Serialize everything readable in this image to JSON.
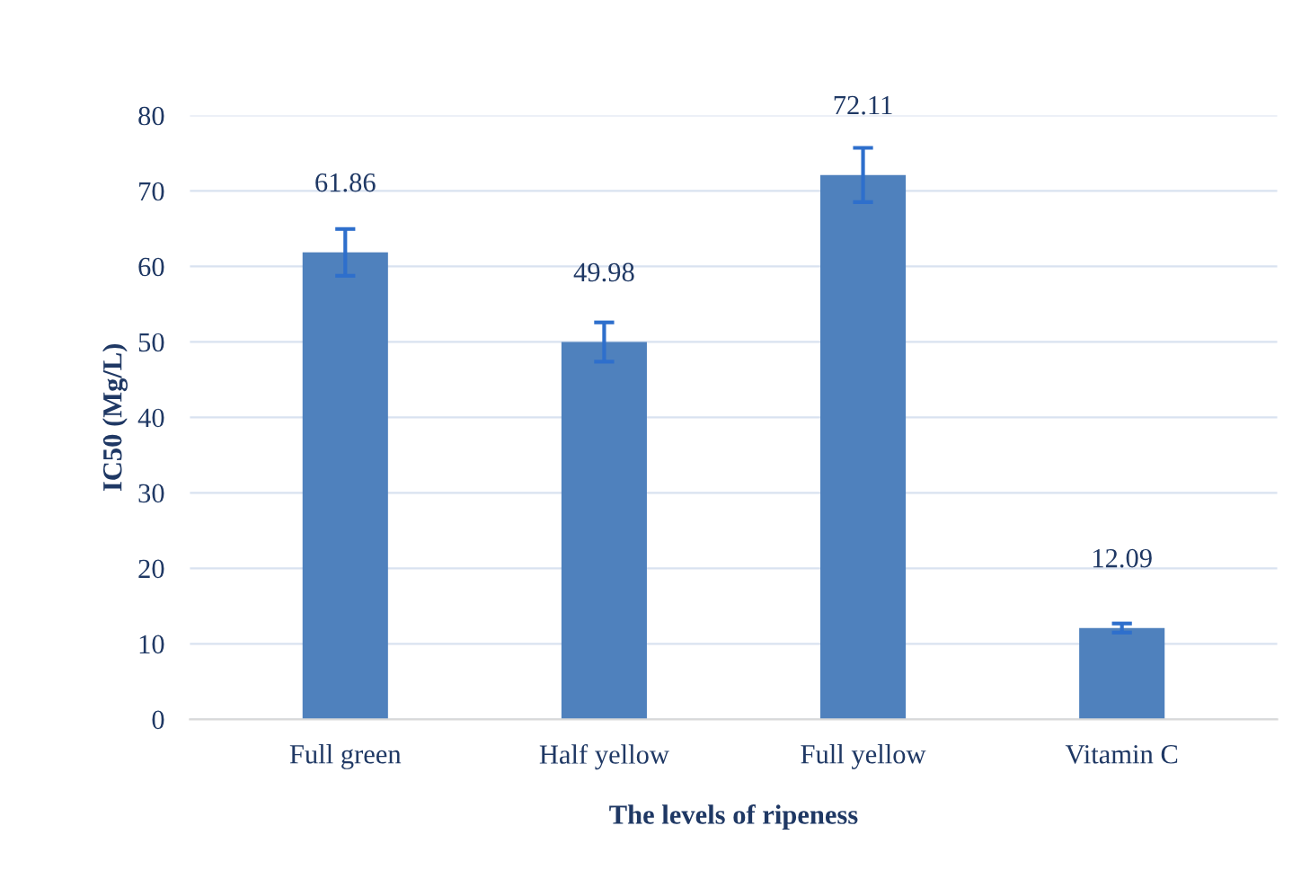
{
  "chart_data": {
    "type": "bar",
    "xlabel": "The levels of ripeness",
    "ylabel": "IC50 (Mg/L)",
    "categories": [
      "Full green",
      "Half yellow",
      "Full yellow",
      "Vitamin C"
    ],
    "values": [
      61.86,
      49.98,
      72.11,
      12.09
    ],
    "errors": [
      3.1,
      2.6,
      3.6,
      0.6
    ],
    "color": "#4f81bd",
    "data_labels": true,
    "ylim": [
      0,
      80
    ],
    "yticks": [
      0,
      10,
      20,
      30,
      40,
      50,
      60,
      70,
      80
    ],
    "grid": "y"
  }
}
